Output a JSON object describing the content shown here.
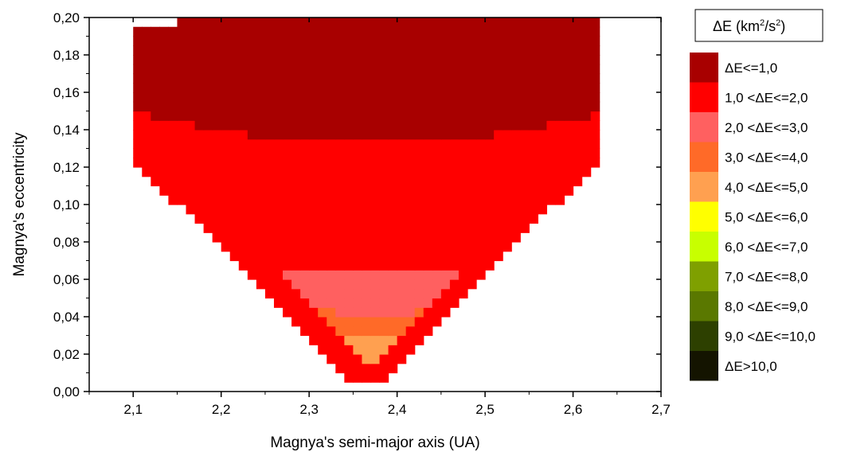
{
  "chart_data": {
    "type": "heatmap",
    "xlabel": "Magnya's semi-major axis (UA)",
    "ylabel": "Magnya's eccentricity",
    "xlim": [
      2.05,
      2.7
    ],
    "ylim": [
      0.0,
      0.2
    ],
    "x_ticks": [
      "2,1",
      "2,2",
      "2,3",
      "2,4",
      "2,5",
      "2,6",
      "2,7"
    ],
    "x_tick_values": [
      2.1,
      2.2,
      2.3,
      2.4,
      2.5,
      2.6,
      2.7
    ],
    "y_ticks": [
      "0,00",
      "0,02",
      "0,04",
      "0,06",
      "0,08",
      "0,10",
      "0,12",
      "0,14",
      "0,16",
      "0,18",
      "0,20"
    ],
    "y_tick_values": [
      0.0,
      0.02,
      0.04,
      0.06,
      0.08,
      0.1,
      0.12,
      0.14,
      0.16,
      0.18,
      0.2
    ],
    "legend": {
      "title_main": "ΔE (km",
      "title_sup1": "2",
      "title_mid": "/s",
      "title_sup2": "2",
      "title_end": ")",
      "position": "right",
      "items": [
        {
          "label": "ΔE<=1,0",
          "color": "#a80000"
        },
        {
          "label": "1,0 <ΔE<=2,0",
          "color": "#ff0000"
        },
        {
          "label": "2,0 <ΔE<=3,0",
          "color": "#ff6060"
        },
        {
          "label": "3,0 <ΔE<=4,0",
          "color": "#ff6a28"
        },
        {
          "label": "4,0 <ΔE<=5,0",
          "color": "#ffa050"
        },
        {
          "label": "5,0 <ΔE<=6,0",
          "color": "#ffff00"
        },
        {
          "label": "6,0 <ΔE<=7,0",
          "color": "#c8ff00"
        },
        {
          "label": "7,0 <ΔE<=8,0",
          "color": "#7fa000"
        },
        {
          "label": "8,0 <ΔE<=9,0",
          "color": "#5a7800"
        },
        {
          "label": "9,0 <ΔE<=10,0",
          "color": "#2d4000"
        },
        {
          "label": "ΔE>10,0",
          "color": "#141400"
        }
      ]
    },
    "regions_note_levels": [
      1,
      2,
      3,
      4,
      5
    ],
    "rows": [
      {
        "e": 0.2,
        "a_min": 2.095,
        "a_max": 2.625,
        "level": 1
      },
      {
        "e": 0.19,
        "a_min": 2.095,
        "a_max": 2.625,
        "level": 1
      },
      {
        "e": 0.18,
        "a_min": 2.095,
        "a_max": 2.625,
        "level": 1
      },
      {
        "e": 0.17,
        "a_min": 2.095,
        "a_max": 2.625,
        "level": 1
      },
      {
        "e": 0.16,
        "a_min": 2.095,
        "a_max": 2.625,
        "level": 1
      },
      {
        "e": 0.15,
        "a_min": 2.095,
        "a_max": 2.625,
        "level": 1
      }
    ],
    "bands": [
      {
        "level": 1,
        "e_from": 0.133,
        "e_to": 0.2
      },
      {
        "level": 2,
        "e_from": 0.068,
        "e_to": 0.148
      },
      {
        "level": 3,
        "e_from": 0.038,
        "e_to": 0.07
      },
      {
        "level": 4,
        "e_from": 0.02,
        "e_to": 0.045
      },
      {
        "level": 5,
        "e_from": 0.004,
        "e_to": 0.03
      }
    ]
  }
}
